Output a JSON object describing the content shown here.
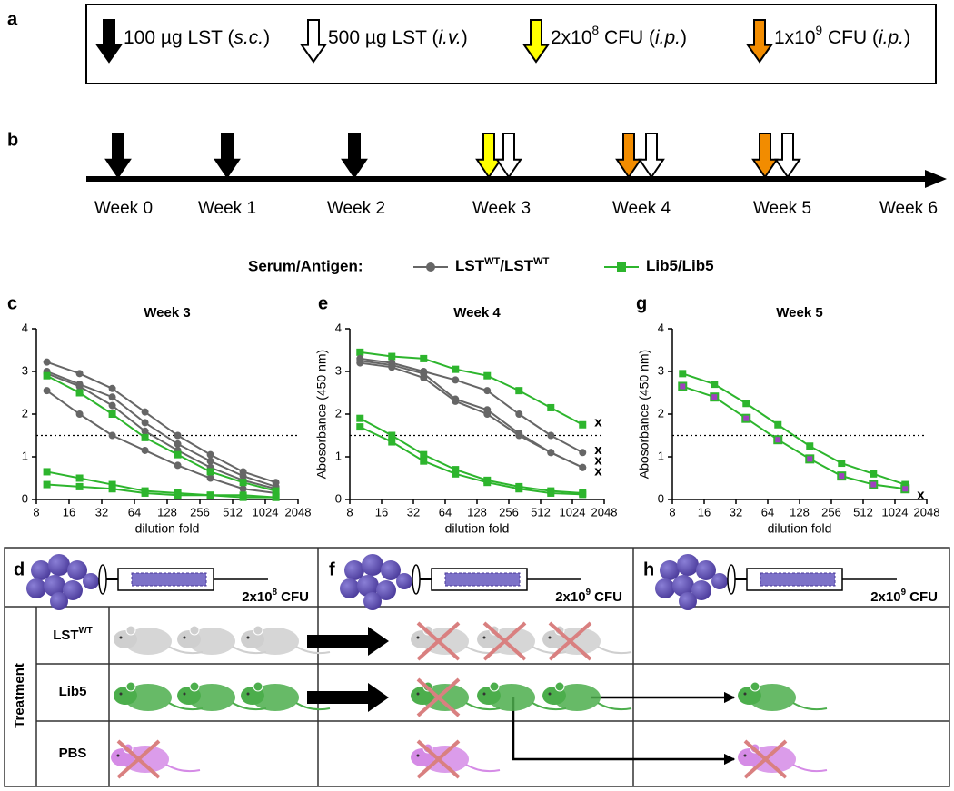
{
  "panel_labels": [
    "a",
    "b",
    "c",
    "d",
    "e",
    "f",
    "g",
    "h"
  ],
  "injection_legend": [
    {
      "parts": [
        "100 µg LST (",
        "s.c.",
        ")"
      ],
      "styles": [
        "normal",
        "italic",
        "normal"
      ],
      "color": "#000000"
    },
    {
      "parts": [
        "500 µg LST (",
        "i.v.",
        ")"
      ],
      "styles": [
        "normal",
        "italic",
        "normal"
      ],
      "color": "#ffffff"
    },
    {
      "parts": [
        "2x10",
        "8",
        " CFU (",
        "i.p.",
        ")"
      ],
      "styles": [
        "normal",
        "sup",
        "normal",
        "italic",
        "normal"
      ],
      "color": "#ffff00"
    },
    {
      "parts": [
        "1x10",
        "9",
        " CFU (",
        "i.p.",
        ")"
      ],
      "styles": [
        "normal",
        "sup",
        "normal",
        "italic",
        "normal"
      ],
      "color": "#f28c00"
    }
  ],
  "timeline": {
    "weeks": [
      "Week 0",
      "Week 1",
      "Week 2",
      "Week 3",
      "Week 4",
      "Week 5",
      "Week 6"
    ]
  },
  "series_legend": {
    "title": "Serum/Antigen:",
    "items": [
      {
        "parts": [
          "LST",
          "WT",
          "/LST",
          "WT"
        ],
        "styles": [
          "normal",
          "sup",
          "normal",
          "sup"
        ],
        "color": "#666666",
        "marker": "circle"
      },
      {
        "parts": [
          "Lib5/Lib5"
        ],
        "styles": [
          "normal"
        ],
        "color": "#2db52d",
        "marker": "square"
      }
    ]
  },
  "chart_data": [
    {
      "type": "line",
      "title": "Week 3",
      "x_label": "dilution fold",
      "x": [
        10,
        20,
        40,
        80,
        160,
        320,
        640,
        1280
      ],
      "xlim": [
        8,
        2048
      ],
      "xticks": [
        8,
        16,
        32,
        64,
        128,
        256,
        512,
        1024,
        2048
      ],
      "xscale": "log2",
      "ylim": [
        0,
        4
      ],
      "yticks": [
        0,
        1,
        2,
        3,
        4
      ],
      "threshold": 1.5,
      "series": [
        {
          "color": "#666666",
          "marker": "circle",
          "values": [
            3.22,
            2.95,
            2.6,
            2.05,
            1.5,
            1.05,
            0.65,
            0.4
          ]
        },
        {
          "color": "#666666",
          "marker": "circle",
          "values": [
            3.0,
            2.7,
            2.4,
            1.8,
            1.3,
            0.9,
            0.55,
            0.3
          ]
        },
        {
          "color": "#666666",
          "marker": "circle",
          "values": [
            2.95,
            2.65,
            2.2,
            1.6,
            1.15,
            0.75,
            0.45,
            0.25
          ]
        },
        {
          "color": "#666666",
          "marker": "circle",
          "values": [
            2.55,
            2.0,
            1.5,
            1.15,
            0.8,
            0.5,
            0.25,
            0.15
          ]
        },
        {
          "color": "#2db52d",
          "marker": "square",
          "values": [
            2.9,
            2.5,
            2.0,
            1.45,
            1.05,
            0.65,
            0.4,
            0.2
          ]
        },
        {
          "color": "#2db52d",
          "marker": "square",
          "values": [
            0.65,
            0.5,
            0.35,
            0.2,
            0.15,
            0.1,
            0.1,
            0.05
          ]
        },
        {
          "color": "#2db52d",
          "marker": "square",
          "values": [
            0.35,
            0.3,
            0.25,
            0.15,
            0.1,
            0.1,
            0.05,
            0.05
          ]
        }
      ]
    },
    {
      "type": "line",
      "title": "Week 4",
      "x_label": "dilution fold",
      "y_label": "Abosorbance (450 nm)",
      "x": [
        10,
        20,
        40,
        80,
        160,
        320,
        640,
        1280
      ],
      "xlim": [
        8,
        2048
      ],
      "xticks": [
        8,
        16,
        32,
        64,
        128,
        256,
        512,
        1024,
        2048
      ],
      "xscale": "log2",
      "ylim": [
        0,
        4
      ],
      "yticks": [
        0,
        1,
        2,
        3,
        4
      ],
      "threshold": 1.5,
      "series": [
        {
          "color": "#2db52d",
          "marker": "square",
          "values": [
            3.45,
            3.35,
            3.3,
            3.05,
            2.9,
            2.55,
            2.15,
            1.75
          ]
        },
        {
          "color": "#666666",
          "marker": "circle",
          "values": [
            3.3,
            3.2,
            3.0,
            2.8,
            2.55,
            2.0,
            1.5,
            1.1
          ]
        },
        {
          "color": "#666666",
          "marker": "circle",
          "values": [
            3.25,
            3.15,
            2.95,
            2.35,
            2.1,
            1.55,
            1.1,
            0.75
          ]
        },
        {
          "color": "#666666",
          "marker": "circle",
          "values": [
            3.2,
            3.1,
            2.85,
            2.3,
            2.0,
            1.5,
            1.1,
            0.75
          ]
        },
        {
          "color": "#2db52d",
          "marker": "square",
          "values": [
            1.9,
            1.5,
            1.05,
            0.7,
            0.45,
            0.3,
            0.2,
            0.15
          ]
        },
        {
          "color": "#2db52d",
          "marker": "square",
          "values": [
            1.7,
            1.35,
            0.9,
            0.6,
            0.4,
            0.25,
            0.15,
            0.12
          ]
        }
      ],
      "annotations": [
        {
          "text": "x",
          "x": 1800,
          "y": 1.8
        },
        {
          "text": "x",
          "x": 1800,
          "y": 1.15
        },
        {
          "text": "x",
          "x": 1800,
          "y": 0.9
        },
        {
          "text": "x",
          "x": 1800,
          "y": 0.65
        }
      ]
    },
    {
      "type": "line",
      "title": "Week 5",
      "x_label": "dilution fold",
      "y_label": "Abosorbance (450 nm)",
      "x": [
        10,
        20,
        40,
        80,
        160,
        320,
        640,
        1280
      ],
      "xlim": [
        8,
        2048
      ],
      "xticks": [
        8,
        16,
        32,
        64,
        128,
        256,
        512,
        1024,
        2048
      ],
      "xscale": "log2",
      "ylim": [
        0,
        4
      ],
      "yticks": [
        0,
        1,
        2,
        3,
        4
      ],
      "threshold": 1.5,
      "series": [
        {
          "color": "#2db52d",
          "marker": "square",
          "values": [
            2.95,
            2.7,
            2.25,
            1.75,
            1.25,
            0.85,
            0.6,
            0.35
          ]
        },
        {
          "color": "#2db52d",
          "marker": "square",
          "marker_color": "#a040c0",
          "values": [
            2.65,
            2.4,
            1.9,
            1.4,
            0.95,
            0.55,
            0.35,
            0.25
          ]
        }
      ],
      "annotations": [
        {
          "text": "x",
          "x": 1800,
          "y": 0.1
        }
      ]
    }
  ],
  "challenge": {
    "doses": [
      {
        "parts": [
          "2x10",
          "8",
          " CFU"
        ],
        "styles": [
          "normal",
          "sup",
          "normal"
        ]
      },
      {
        "parts": [
          "2x10",
          "9",
          " CFU"
        ],
        "styles": [
          "normal",
          "sup",
          "normal"
        ]
      },
      {
        "parts": [
          "2x10",
          "9",
          " CFU"
        ],
        "styles": [
          "normal",
          "sup",
          "normal"
        ]
      }
    ],
    "group_title": "Treatment",
    "groups": [
      {
        "parts": [
          "LST",
          "WT"
        ],
        "styles": [
          "normal",
          "sup"
        ]
      },
      {
        "parts": [
          "Lib5"
        ],
        "styles": [
          "normal"
        ]
      },
      {
        "parts": [
          "PBS"
        ],
        "styles": [
          "normal"
        ]
      }
    ]
  }
}
